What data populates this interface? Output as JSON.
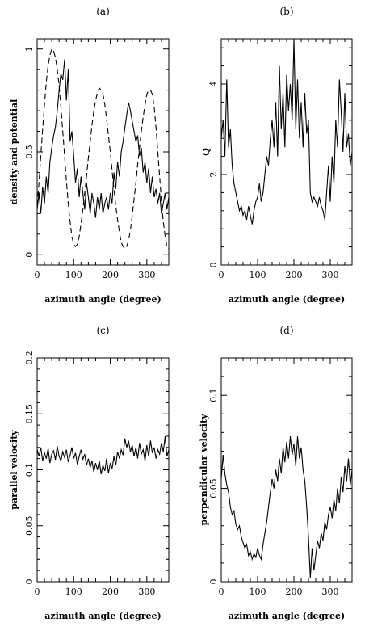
{
  "chart_data": [
    {
      "type": "line",
      "panel_label": "(a)",
      "xlabel": "azimuth angle (degree)",
      "ylabel": "density and potential",
      "xlim": [
        0,
        360
      ],
      "ylim": [
        -0.05,
        1.05
      ],
      "xticks": [
        0,
        100,
        200,
        300
      ],
      "yticks": [
        0,
        0.5,
        1
      ],
      "ytick_labels": [
        "0",
        "0.5",
        "1"
      ],
      "grid": false,
      "series": [
        {
          "style": "solid",
          "x": [
            0,
            5,
            10,
            15,
            20,
            25,
            30,
            35,
            40,
            45,
            50,
            55,
            60,
            65,
            70,
            75,
            80,
            85,
            90,
            95,
            100,
            105,
            110,
            115,
            120,
            125,
            130,
            135,
            140,
            145,
            150,
            155,
            160,
            165,
            170,
            175,
            180,
            185,
            190,
            195,
            200,
            205,
            210,
            215,
            220,
            225,
            230,
            235,
            240,
            245,
            250,
            255,
            260,
            265,
            270,
            275,
            280,
            285,
            290,
            295,
            300,
            305,
            310,
            315,
            320,
            325,
            330,
            335,
            340,
            345,
            350,
            355,
            360
          ],
          "y": [
            0.22,
            0.3,
            0.2,
            0.33,
            0.25,
            0.38,
            0.3,
            0.45,
            0.52,
            0.58,
            0.62,
            0.7,
            0.8,
            0.88,
            0.85,
            0.95,
            0.75,
            0.9,
            0.55,
            0.6,
            0.48,
            0.35,
            0.42,
            0.28,
            0.38,
            0.3,
            0.22,
            0.35,
            0.28,
            0.2,
            0.3,
            0.25,
            0.18,
            0.28,
            0.22,
            0.3,
            0.2,
            0.25,
            0.28,
            0.22,
            0.3,
            0.25,
            0.4,
            0.32,
            0.45,
            0.38,
            0.5,
            0.55,
            0.62,
            0.68,
            0.74,
            0.7,
            0.65,
            0.6,
            0.55,
            0.58,
            0.48,
            0.52,
            0.4,
            0.45,
            0.35,
            0.42,
            0.3,
            0.38,
            0.28,
            0.32,
            0.25,
            0.3,
            0.2,
            0.25,
            0.3,
            0.22,
            0.28
          ]
        },
        {
          "style": "dashed",
          "x": [
            0,
            5,
            10,
            15,
            20,
            25,
            30,
            35,
            40,
            45,
            50,
            55,
            60,
            65,
            70,
            75,
            80,
            85,
            90,
            95,
            100,
            105,
            110,
            115,
            120,
            125,
            130,
            135,
            140,
            145,
            150,
            155,
            160,
            165,
            170,
            175,
            180,
            185,
            190,
            195,
            200,
            205,
            210,
            215,
            220,
            225,
            230,
            235,
            240,
            245,
            250,
            255,
            260,
            265,
            270,
            275,
            280,
            285,
            290,
            295,
            300,
            305,
            310,
            315,
            320,
            325,
            330,
            335,
            340,
            345,
            350,
            355,
            360
          ],
          "y": [
            0.24,
            0.35,
            0.48,
            0.61,
            0.73,
            0.84,
            0.92,
            0.97,
            1.0,
            0.99,
            0.96,
            0.9,
            0.82,
            0.72,
            0.6,
            0.48,
            0.36,
            0.25,
            0.16,
            0.09,
            0.05,
            0.04,
            0.05,
            0.09,
            0.15,
            0.22,
            0.3,
            0.38,
            0.47,
            0.55,
            0.63,
            0.7,
            0.75,
            0.79,
            0.81,
            0.8,
            0.78,
            0.73,
            0.66,
            0.58,
            0.5,
            0.41,
            0.32,
            0.24,
            0.17,
            0.11,
            0.06,
            0.04,
            0.03,
            0.04,
            0.07,
            0.12,
            0.19,
            0.27,
            0.35,
            0.44,
            0.52,
            0.6,
            0.67,
            0.73,
            0.78,
            0.8,
            0.8,
            0.78,
            0.72,
            0.62,
            0.5,
            0.38,
            0.26,
            0.16,
            0.09,
            0.04,
            0.03
          ]
        }
      ]
    },
    {
      "type": "line",
      "panel_label": "(b)",
      "xlabel": "azimuth angle (degree)",
      "ylabel": "Q",
      "xlim": [
        0,
        360
      ],
      "ylim": [
        0,
        5
      ],
      "xticks": [
        0,
        100,
        200,
        300
      ],
      "yticks": [
        0,
        2,
        4
      ],
      "ytick_labels": [
        "0",
        "2",
        "4"
      ],
      "grid": false,
      "series": [
        {
          "style": "solid",
          "x": [
            0,
            5,
            10,
            15,
            20,
            25,
            30,
            35,
            40,
            45,
            50,
            55,
            60,
            65,
            70,
            75,
            80,
            85,
            90,
            95,
            100,
            105,
            110,
            115,
            120,
            125,
            130,
            135,
            140,
            145,
            150,
            155,
            160,
            165,
            170,
            175,
            180,
            185,
            190,
            195,
            200,
            205,
            210,
            215,
            220,
            225,
            230,
            235,
            240,
            245,
            250,
            255,
            260,
            265,
            270,
            275,
            280,
            285,
            290,
            295,
            300,
            305,
            310,
            315,
            320,
            325,
            330,
            335,
            340,
            345,
            350,
            355,
            360
          ],
          "y": [
            2.8,
            3.2,
            2.4,
            4.1,
            2.6,
            3.0,
            2.2,
            1.8,
            1.6,
            1.4,
            1.2,
            1.3,
            1.1,
            1.2,
            1.0,
            1.3,
            1.1,
            0.9,
            1.2,
            1.4,
            1.5,
            1.8,
            1.4,
            1.6,
            2.0,
            2.4,
            2.2,
            2.8,
            3.2,
            2.6,
            3.6,
            2.4,
            4.4,
            3.0,
            3.8,
            2.6,
            4.2,
            3.4,
            4.0,
            3.2,
            5.0,
            3.0,
            4.1,
            2.8,
            3.6,
            2.6,
            3.8,
            2.9,
            3.2,
            1.6,
            1.4,
            1.5,
            1.4,
            1.3,
            1.5,
            1.3,
            1.2,
            1.0,
            1.6,
            2.2,
            1.4,
            2.4,
            1.8,
            3.2,
            2.6,
            4.1,
            3.4,
            2.5,
            3.8,
            2.6,
            2.9,
            2.2,
            2.5
          ]
        }
      ]
    },
    {
      "type": "line",
      "panel_label": "(c)",
      "xlabel": "azimuth angle (degree)",
      "ylabel": "parallel velocity",
      "xlim": [
        0,
        360
      ],
      "ylim": [
        0,
        0.2
      ],
      "xticks": [
        0,
        100,
        200,
        300
      ],
      "yticks": [
        0,
        0.05,
        0.1,
        0.15,
        0.2
      ],
      "ytick_labels": [
        "0",
        "0.05",
        "0.1",
        "0.15",
        "0.2"
      ],
      "grid": false,
      "series": [
        {
          "style": "solid",
          "x": [
            0,
            5,
            10,
            15,
            20,
            25,
            30,
            35,
            40,
            45,
            50,
            55,
            60,
            65,
            70,
            75,
            80,
            85,
            90,
            95,
            100,
            105,
            110,
            115,
            120,
            125,
            130,
            135,
            140,
            145,
            150,
            155,
            160,
            165,
            170,
            175,
            180,
            185,
            190,
            195,
            200,
            205,
            210,
            215,
            220,
            225,
            230,
            235,
            240,
            245,
            250,
            255,
            260,
            265,
            270,
            275,
            280,
            285,
            290,
            295,
            300,
            305,
            310,
            315,
            320,
            325,
            330,
            335,
            340,
            345,
            350,
            355,
            360
          ],
          "y": [
            0.118,
            0.112,
            0.12,
            0.108,
            0.115,
            0.11,
            0.119,
            0.106,
            0.114,
            0.117,
            0.109,
            0.121,
            0.112,
            0.108,
            0.116,
            0.111,
            0.118,
            0.107,
            0.113,
            0.12,
            0.11,
            0.115,
            0.105,
            0.112,
            0.118,
            0.109,
            0.114,
            0.104,
            0.11,
            0.102,
            0.108,
            0.098,
            0.106,
            0.1,
            0.108,
            0.096,
            0.104,
            0.099,
            0.11,
            0.097,
            0.106,
            0.101,
            0.112,
            0.104,
            0.116,
            0.11,
            0.118,
            0.113,
            0.128,
            0.12,
            0.126,
            0.116,
            0.122,
            0.112,
            0.12,
            0.11,
            0.124,
            0.114,
            0.118,
            0.108,
            0.122,
            0.112,
            0.126,
            0.115,
            0.12,
            0.11,
            0.118,
            0.114,
            0.124,
            0.116,
            0.13,
            0.112,
            0.118
          ]
        }
      ]
    },
    {
      "type": "line",
      "panel_label": "(d)",
      "xlabel": "azimuth angle (degree)",
      "ylabel": "perpendicular velocity",
      "xlim": [
        0,
        360
      ],
      "ylim": [
        0,
        0.12
      ],
      "xticks": [
        0,
        100,
        200,
        300
      ],
      "yticks": [
        0,
        0.05,
        0.1
      ],
      "ytick_labels": [
        "0",
        "0.05",
        "0.1"
      ],
      "grid": false,
      "series": [
        {
          "style": "solid",
          "x": [
            0,
            5,
            10,
            15,
            20,
            25,
            30,
            35,
            40,
            45,
            50,
            55,
            60,
            65,
            70,
            75,
            80,
            85,
            90,
            95,
            100,
            105,
            110,
            115,
            120,
            125,
            130,
            135,
            140,
            145,
            150,
            155,
            160,
            165,
            170,
            175,
            180,
            185,
            190,
            195,
            200,
            205,
            210,
            215,
            220,
            225,
            230,
            235,
            240,
            245,
            250,
            255,
            260,
            265,
            270,
            275,
            280,
            285,
            290,
            295,
            300,
            305,
            310,
            315,
            320,
            325,
            330,
            335,
            340,
            345,
            350,
            355,
            360
          ],
          "y": [
            0.055,
            0.068,
            0.058,
            0.052,
            0.048,
            0.04,
            0.036,
            0.038,
            0.031,
            0.028,
            0.03,
            0.024,
            0.021,
            0.018,
            0.02,
            0.014,
            0.016,
            0.012,
            0.015,
            0.013,
            0.018,
            0.014,
            0.012,
            0.02,
            0.026,
            0.032,
            0.04,
            0.048,
            0.055,
            0.05,
            0.06,
            0.054,
            0.066,
            0.058,
            0.072,
            0.064,
            0.075,
            0.066,
            0.078,
            0.068,
            0.074,
            0.062,
            0.078,
            0.066,
            0.072,
            0.06,
            0.054,
            0.04,
            0.024,
            0.002,
            0.018,
            0.006,
            0.014,
            0.022,
            0.018,
            0.026,
            0.022,
            0.032,
            0.028,
            0.036,
            0.04,
            0.034,
            0.044,
            0.038,
            0.05,
            0.042,
            0.056,
            0.048,
            0.062,
            0.054,
            0.066,
            0.052,
            0.06
          ]
        }
      ]
    }
  ]
}
